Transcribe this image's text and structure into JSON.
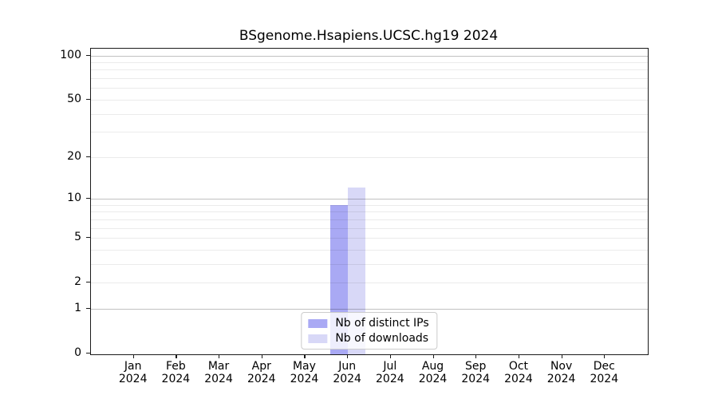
{
  "title": "BSgenome.Hsapiens.UCSC.hg19 2024",
  "legend": {
    "items": [
      {
        "label": "Nb of distinct IPs",
        "color": "#a9a9f4"
      },
      {
        "label": "Nb of downloads",
        "color": "#d8d8f7"
      }
    ]
  },
  "y_axis": {
    "tick_labels": [
      "0",
      "1",
      "2",
      "5",
      "10",
      "20",
      "50",
      "100"
    ],
    "tick_values": [
      0,
      1,
      2,
      5,
      10,
      20,
      50,
      100
    ]
  },
  "x_axis": {
    "months": [
      {
        "label": "Jan",
        "year": "2024"
      },
      {
        "label": "Feb",
        "year": "2024"
      },
      {
        "label": "Mar",
        "year": "2024"
      },
      {
        "label": "Apr",
        "year": "2024"
      },
      {
        "label": "May",
        "year": "2024"
      },
      {
        "label": "Jun",
        "year": "2024"
      },
      {
        "label": "Jul",
        "year": "2024"
      },
      {
        "label": "Aug",
        "year": "2024"
      },
      {
        "label": "Sep",
        "year": "2024"
      },
      {
        "label": "Oct",
        "year": "2024"
      },
      {
        "label": "Nov",
        "year": "2024"
      },
      {
        "label": "Dec",
        "year": "2024"
      }
    ]
  },
  "chart_data": {
    "type": "bar",
    "title": "BSgenome.Hsapiens.UCSC.hg19 2024",
    "categories": [
      "Jan 2024",
      "Feb 2024",
      "Mar 2024",
      "Apr 2024",
      "May 2024",
      "Jun 2024",
      "Jul 2024",
      "Aug 2024",
      "Sep 2024",
      "Oct 2024",
      "Nov 2024",
      "Dec 2024"
    ],
    "series": [
      {
        "name": "Nb of distinct IPs",
        "color": "#a9a9f4",
        "values": [
          0,
          0,
          0,
          0,
          0,
          9,
          0,
          0,
          0,
          0,
          0,
          0
        ]
      },
      {
        "name": "Nb of downloads",
        "color": "#d8d8f7",
        "values": [
          0,
          0,
          0,
          0,
          0,
          12,
          0,
          0,
          0,
          0,
          0,
          0
        ]
      }
    ],
    "xlabel": "",
    "ylabel": "",
    "y_scale": "log10(value+1)",
    "y_ticks": [
      0,
      1,
      2,
      5,
      10,
      20,
      50,
      100
    ],
    "ylim": [
      0,
      110
    ],
    "grid": true,
    "grid_major_at": [
      1,
      10,
      100
    ],
    "grid_minor_at": [
      2,
      3,
      4,
      5,
      6,
      7,
      8,
      9,
      20,
      30,
      40,
      50,
      60,
      70,
      80,
      90
    ],
    "legend_position": "bottom-center"
  }
}
